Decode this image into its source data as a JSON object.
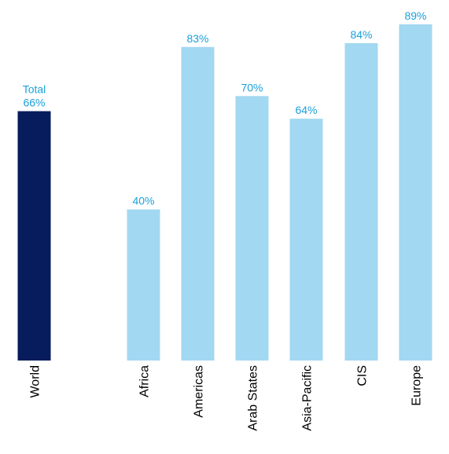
{
  "chart_data": {
    "type": "bar",
    "title": "",
    "xlabel": "",
    "ylabel": "",
    "ylim": [
      0,
      100
    ],
    "categories": [
      "World",
      "Africa",
      "Americas",
      "Arab States",
      "Asia-Pacific",
      "CIS",
      "Europe"
    ],
    "values": [
      66,
      40,
      83,
      70,
      64,
      84,
      89
    ],
    "value_labels": [
      "66%",
      "40%",
      "83%",
      "70%",
      "64%",
      "84%",
      "89%"
    ],
    "annotations": [
      {
        "category": "World",
        "text": "Total"
      }
    ],
    "grid": false,
    "legend": "none",
    "colors": {
      "highlight_bar": "#061c5c",
      "bar": "#a2d8f1",
      "value_label": "#1aa0db"
    }
  }
}
